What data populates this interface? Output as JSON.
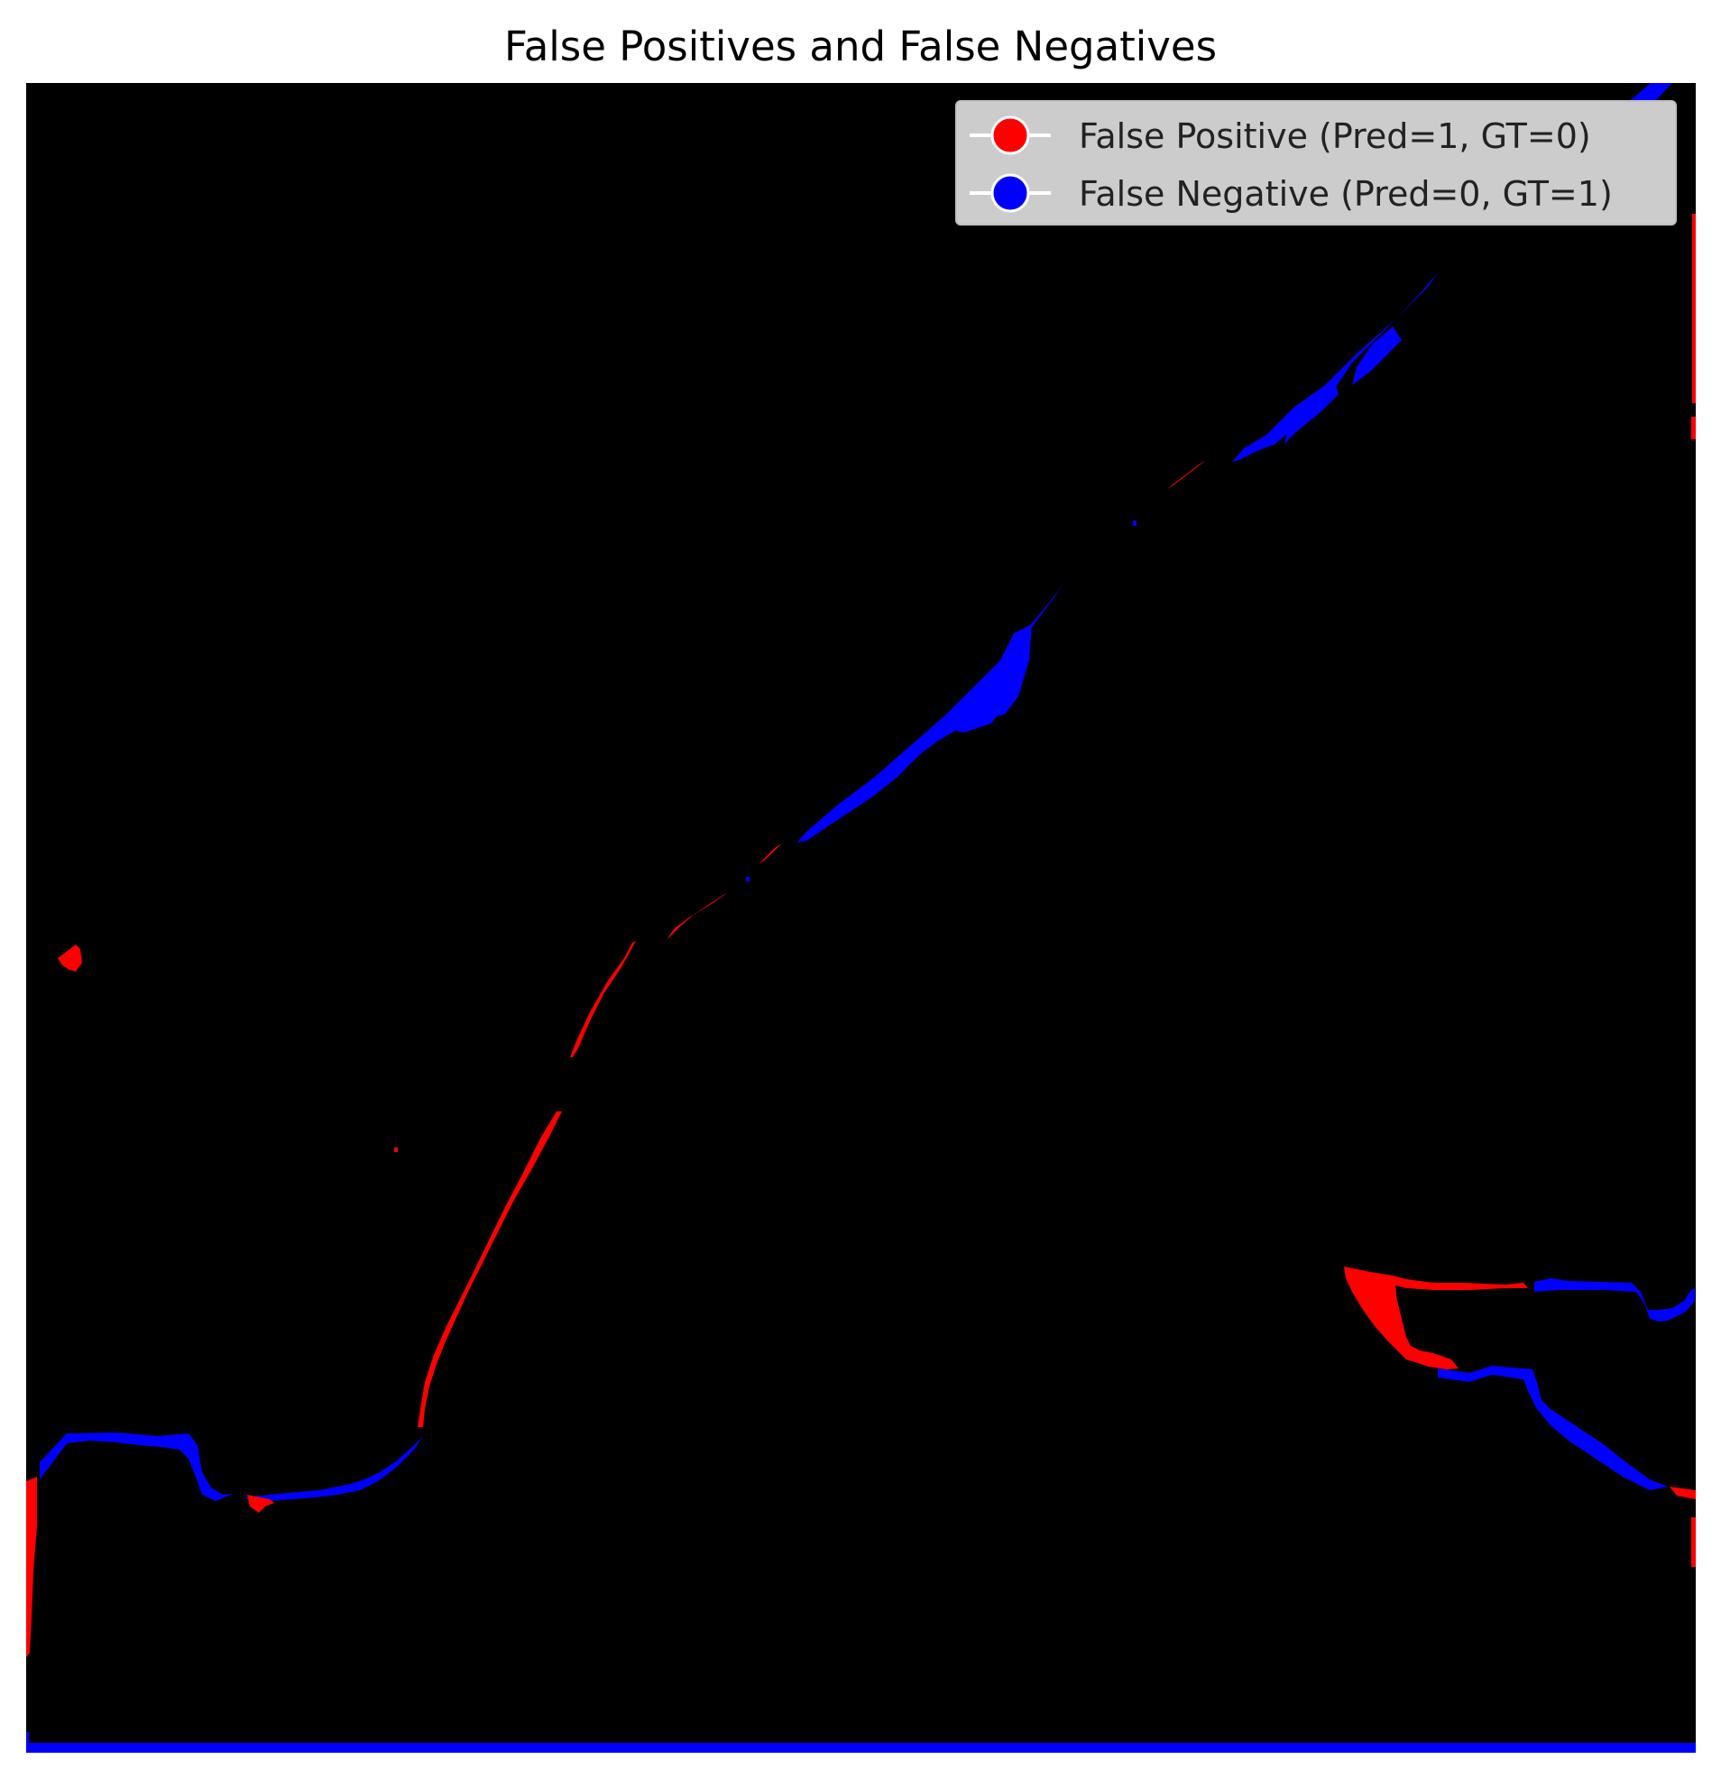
{
  "figure": {
    "title": "False Positives and False Negatives"
  },
  "legend": {
    "placement": "upper-right",
    "items": [
      {
        "label": "False Positive (Pred=1, GT=0)",
        "color": "#ff0000"
      },
      {
        "label": "False Negative (Pred=0, GT=1)",
        "color": "#0000ff"
      }
    ]
  },
  "colors": {
    "background": "#000000",
    "false_positive": "#ff0000",
    "false_negative": "#0000ff"
  }
}
